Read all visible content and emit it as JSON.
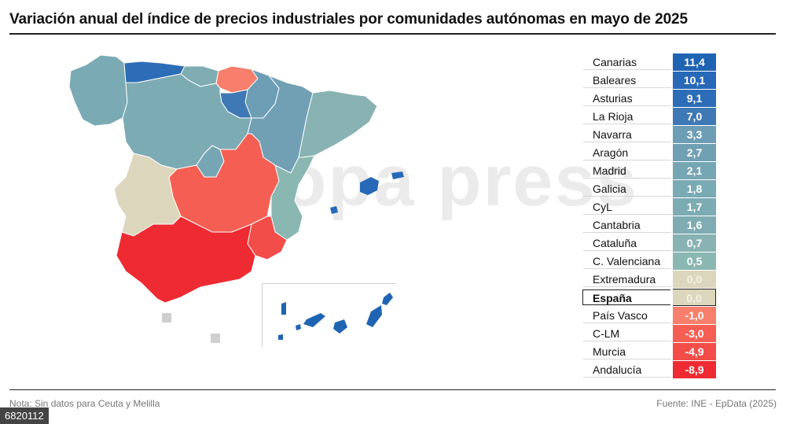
{
  "title": "Variación anual del índice de precios industriales por comunidades autónomas en mayo de 2025",
  "watermark": "europa press",
  "footer": {
    "note": "Nota: Sin datos para Ceuta y Melilla",
    "source": "Fuente: INE - EpData (2025)",
    "id": "6820112"
  },
  "regions": [
    {
      "name": "Canarias",
      "value": "11,4",
      "color": "#1f64b3"
    },
    {
      "name": "Baleares",
      "value": "10,1",
      "color": "#2769b7"
    },
    {
      "name": "Asturias",
      "value": "9,1",
      "color": "#2d6db7"
    },
    {
      "name": "La Rioja",
      "value": "7,0",
      "color": "#3e79b5"
    },
    {
      "name": "Navarra",
      "value": "3,3",
      "color": "#6d9eb5"
    },
    {
      "name": "Aragón",
      "value": "2,7",
      "color": "#71a0b4"
    },
    {
      "name": "Madrid",
      "value": "2,1",
      "color": "#76a6b3"
    },
    {
      "name": "Galicia",
      "value": "1,8",
      "color": "#7aaab4"
    },
    {
      "name": "CyL",
      "value": "1,7",
      "color": "#7dabb4"
    },
    {
      "name": "Cantabria",
      "value": "1,6",
      "color": "#7eacb2"
    },
    {
      "name": "Cataluña",
      "value": "0,7",
      "color": "#88b3b2"
    },
    {
      "name": "C. Valenciana",
      "value": "0,5",
      "color": "#8ab7b2"
    },
    {
      "name": "Extremadura",
      "value": "0,0",
      "color": "#dcd6bd"
    },
    {
      "name": "España",
      "value": "0,0",
      "color": "#dcd6bd",
      "highlight": true
    },
    {
      "name": "País Vasco",
      "value": "-1,0",
      "color": "#f77f6b"
    },
    {
      "name": "C-LM",
      "value": "-3,0",
      "color": "#f55f53"
    },
    {
      "name": "Murcia",
      "value": "-4,9",
      "color": "#f24d48"
    },
    {
      "name": "Andalucía",
      "value": "-8,9",
      "color": "#ee2b32"
    }
  ]
}
